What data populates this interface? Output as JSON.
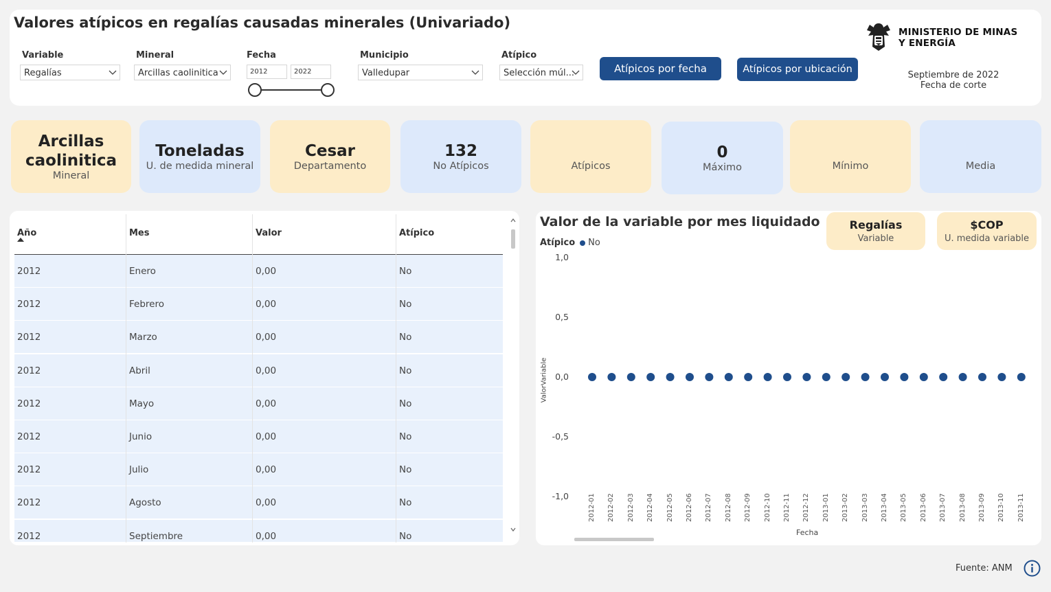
{
  "header": {
    "title": "Valores atípicos en regalías causadas minerales (Univariado)",
    "filters": {
      "variable": {
        "label": "Variable",
        "value": "Regalías"
      },
      "mineral": {
        "label": "Mineral",
        "value": "Arcillas caolinitica"
      },
      "fecha": {
        "label": "Fecha",
        "start": "2012",
        "end": "2022"
      },
      "municipio": {
        "label": "Municipio",
        "value": "Valledupar"
      },
      "atipico": {
        "label": "Atípico",
        "value": "Selección múl..."
      }
    },
    "buttons": {
      "por_fecha": "Atípicos por fecha",
      "por_ubicacion": "Atípicos por ubicación"
    },
    "logo": {
      "line1": "MINISTERIO DE MINAS",
      "line2": "Y ENERGÍA"
    },
    "corte": {
      "date": "Septiembre de 2022",
      "label": "Fecha de corte"
    }
  },
  "kpis": [
    {
      "value": "Arcillas caolinitica",
      "label": "Mineral",
      "color": "#fdecc8"
    },
    {
      "value": "Toneladas",
      "label": "U. de medida mineral",
      "color": "#dde9fb"
    },
    {
      "value": "Cesar",
      "label": "Departamento",
      "color": "#fdecc8"
    },
    {
      "value": "132",
      "label": "No Atípicos",
      "color": "#dde9fb"
    },
    {
      "value": "",
      "label": "Atípicos",
      "color": "#fdecc8"
    },
    {
      "value": "0",
      "label": "Máximo",
      "color": "#dde9fb"
    },
    {
      "value": "",
      "label": "Mínimo",
      "color": "#fdecc8"
    },
    {
      "value": "",
      "label": "Media",
      "color": "#dde9fb"
    }
  ],
  "table": {
    "columns": [
      "Año",
      "Mes",
      "Valor",
      "Atípico"
    ],
    "rows": [
      [
        "2012",
        "Enero",
        "0,00",
        "No"
      ],
      [
        "2012",
        "Febrero",
        "0,00",
        "No"
      ],
      [
        "2012",
        "Marzo",
        "0,00",
        "No"
      ],
      [
        "2012",
        "Abril",
        "0,00",
        "No"
      ],
      [
        "2012",
        "Mayo",
        "0,00",
        "No"
      ],
      [
        "2012",
        "Junio",
        "0,00",
        "No"
      ],
      [
        "2012",
        "Julio",
        "0,00",
        "No"
      ],
      [
        "2012",
        "Agosto",
        "0,00",
        "No"
      ],
      [
        "2012",
        "Septiembre",
        "0,00",
        "No"
      ]
    ]
  },
  "chart_panel": {
    "title": "Valor de la variable por mes liquidado",
    "pills": [
      {
        "value": "Regalías",
        "label": "Variable"
      },
      {
        "value": "$COP",
        "label": "U. medida variable"
      }
    ]
  },
  "chart_data": {
    "type": "scatter",
    "title": "Valor de la variable por mes liquidado",
    "xlabel": "Fecha",
    "ylabel": "ValorVariable",
    "legend_title": "Atípico",
    "legend_position": "top-left",
    "ylim": [
      -1.0,
      1.0
    ],
    "yticks": [
      "1,0",
      "0,5",
      "0,0",
      "-0,5",
      "-1,0"
    ],
    "ytick_values": [
      1.0,
      0.5,
      0.0,
      -0.5,
      -1.0
    ],
    "x": [
      "2012-01",
      "2012-02",
      "2012-03",
      "2012-04",
      "2012-05",
      "2012-06",
      "2012-07",
      "2012-08",
      "2012-09",
      "2012-10",
      "2012-11",
      "2012-12",
      "2013-01",
      "2013-02",
      "2013-03",
      "2013-04",
      "2013-05",
      "2013-06",
      "2013-07",
      "2013-08",
      "2013-09",
      "2013-10",
      "2013-11"
    ],
    "series": [
      {
        "name": "No",
        "color": "#1f4e8c",
        "values": [
          0,
          0,
          0,
          0,
          0,
          0,
          0,
          0,
          0,
          0,
          0,
          0,
          0,
          0,
          0,
          0,
          0,
          0,
          0,
          0,
          0,
          0,
          0
        ]
      }
    ],
    "grid": false
  },
  "footer": {
    "source": "Fuente: ANM"
  }
}
